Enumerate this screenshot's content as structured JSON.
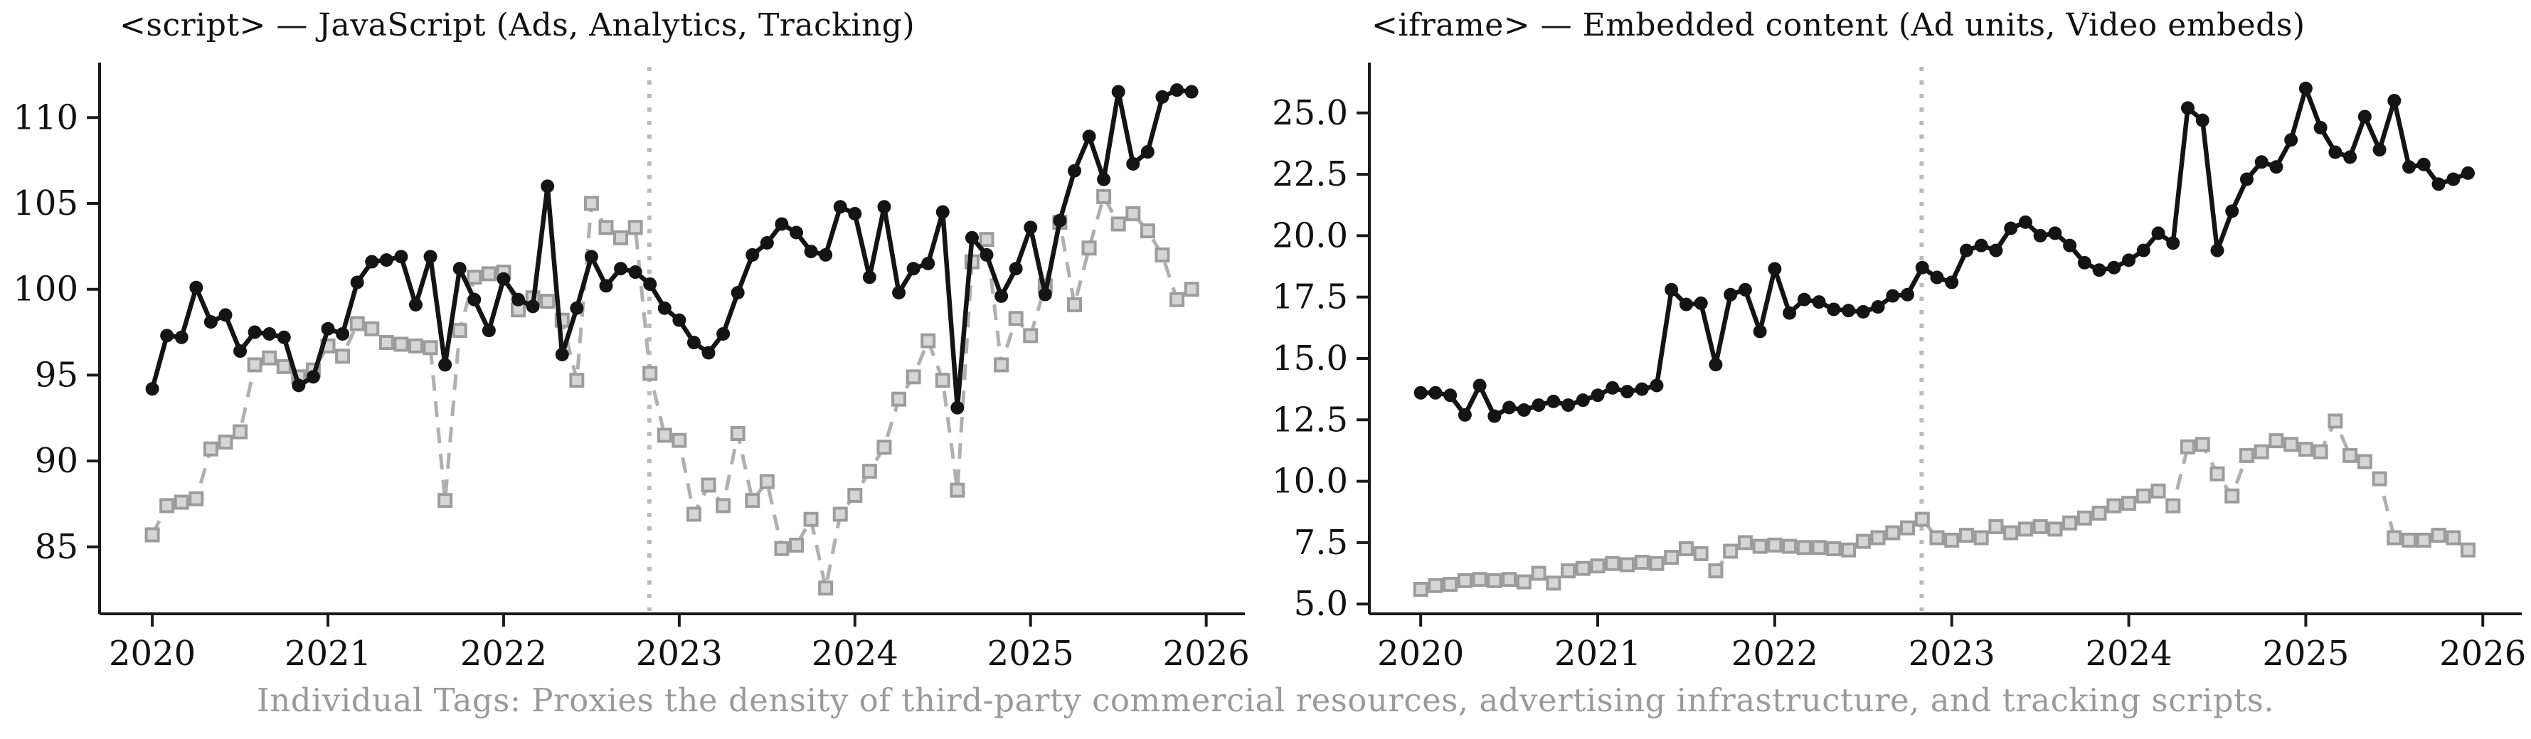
{
  "caption": "Individual Tags: Proxies the density of third-party commercial resources, advertising infrastructure, and tracking scripts.",
  "charts": [
    {
      "title": "<script> — JavaScript (Ads, Analytics, Tracking)"
    },
    {
      "title": "<iframe> — Embedded content (Ad units, Video embeds)"
    }
  ],
  "colors": {
    "solid_series": "#141414",
    "dashed_series": "#b0b0b0",
    "marker_face": "#d6d6d6",
    "marker_edge": "#9c9c9c",
    "vline": "#bbbbbb",
    "axis": "#1a1a1a",
    "tick_label": "#111111",
    "caption_text": "#9a9a9a"
  },
  "chart_data": [
    {
      "type": "line",
      "title": "<script> — JavaScript (Ads, Analytics, Tracking)",
      "x_unit": "month",
      "x_start": 2020.0,
      "x_step_years": 0.0833333,
      "xlim": [
        2019.7,
        2026.22
      ],
      "ylim": [
        81.1,
        113.2
      ],
      "xticks": [
        2020,
        2021,
        2022,
        2023,
        2024,
        2025,
        2026
      ],
      "xtick_labels": [
        "2020",
        "2021",
        "2022",
        "2023",
        "2024",
        "2025",
        "2026"
      ],
      "yticks": [
        85,
        90,
        95,
        100,
        105,
        110
      ],
      "ytick_labels": [
        "85",
        "90",
        "95",
        "100",
        "105",
        "110"
      ],
      "grid": false,
      "legend": "none",
      "annotations": [
        {
          "type": "vline",
          "x": 2022.83,
          "style": "dotted"
        }
      ],
      "series": [
        {
          "name": "solid-black",
          "marker": "circle",
          "values": [
            94.2,
            97.3,
            97.2,
            100.1,
            98.1,
            98.5,
            96.4,
            97.5,
            97.4,
            97.2,
            94.4,
            94.9,
            97.7,
            97.4,
            100.4,
            101.6,
            101.7,
            101.9,
            99.1,
            101.9,
            95.6,
            101.2,
            99.4,
            97.6,
            100.6,
            99.4,
            99.0,
            106.0,
            96.2,
            98.9,
            101.9,
            100.2,
            101.2,
            101.0,
            100.3,
            98.9,
            98.2,
            96.9,
            96.3,
            97.4,
            99.8,
            102.0,
            102.7,
            103.8,
            103.3,
            102.2,
            102.0,
            104.8,
            104.4,
            100.7,
            104.8,
            99.8,
            101.2,
            101.5,
            104.5,
            93.1,
            103.0,
            102.0,
            99.6,
            101.2,
            103.6,
            99.7,
            104.0,
            106.9,
            108.9,
            106.4,
            111.5,
            107.3,
            108.0,
            111.2,
            111.6,
            111.5
          ]
        },
        {
          "name": "dashed-gray",
          "marker": "square",
          "values": [
            85.7,
            87.4,
            87.6,
            87.8,
            90.7,
            91.1,
            91.7,
            95.6,
            96.0,
            95.5,
            94.9,
            95.3,
            96.7,
            96.1,
            98.0,
            97.7,
            96.9,
            96.8,
            96.7,
            96.6,
            87.7,
            97.6,
            100.7,
            100.9,
            101.0,
            98.8,
            99.5,
            99.3,
            98.2,
            94.7,
            105.0,
            103.6,
            103.0,
            103.6,
            95.1,
            91.5,
            91.2,
            86.9,
            88.6,
            87.4,
            91.6,
            87.7,
            88.8,
            84.9,
            85.1,
            86.6,
            82.6,
            86.9,
            88.0,
            89.4,
            90.8,
            93.6,
            94.9,
            97.0,
            94.7,
            88.3,
            101.6,
            102.9,
            95.6,
            98.3,
            97.3,
            100.2,
            103.9,
            99.1,
            102.4,
            105.4,
            103.8,
            104.4,
            103.4,
            102.0,
            99.4,
            100.0
          ]
        }
      ]
    },
    {
      "type": "line",
      "title": "<iframe> — Embedded content (Ad units, Video embeds)",
      "x_unit": "month",
      "x_start": 2020.0,
      "x_step_years": 0.0833333,
      "xlim": [
        2019.71,
        2026.22
      ],
      "ylim": [
        4.6,
        27.05
      ],
      "xticks": [
        2020,
        2021,
        2022,
        2023,
        2024,
        2025,
        2026
      ],
      "xtick_labels": [
        "2020",
        "2021",
        "2022",
        "2023",
        "2024",
        "2025",
        "2026"
      ],
      "yticks": [
        5.0,
        7.5,
        10.0,
        12.5,
        15.0,
        17.5,
        20.0,
        22.5,
        25.0
      ],
      "ytick_labels": [
        "5.0",
        "7.5",
        "10.0",
        "12.5",
        "15.0",
        "17.5",
        "20.0",
        "22.5",
        "25.0"
      ],
      "grid": false,
      "legend": "none",
      "annotations": [
        {
          "type": "vline",
          "x": 2022.83,
          "style": "dotted"
        }
      ],
      "series": [
        {
          "name": "solid-black",
          "marker": "circle",
          "values": [
            13.6,
            13.6,
            13.5,
            12.7,
            13.9,
            12.65,
            13.0,
            12.9,
            13.1,
            13.25,
            13.1,
            13.3,
            13.5,
            13.8,
            13.65,
            13.75,
            13.9,
            17.8,
            17.2,
            17.25,
            14.75,
            17.6,
            17.8,
            16.1,
            18.65,
            16.85,
            17.4,
            17.3,
            17.0,
            16.95,
            16.9,
            17.1,
            17.55,
            17.6,
            18.7,
            18.3,
            18.1,
            19.4,
            19.6,
            19.4,
            20.3,
            20.55,
            20.0,
            20.1,
            19.6,
            18.9,
            18.6,
            18.7,
            19.0,
            19.4,
            20.1,
            19.7,
            25.2,
            24.7,
            19.4,
            21.0,
            22.3,
            23.0,
            22.8,
            23.9,
            26.0,
            24.4,
            23.4,
            23.2,
            24.85,
            23.5,
            25.5,
            22.8,
            22.9,
            22.1,
            22.3,
            22.55
          ]
        },
        {
          "name": "dashed-gray",
          "marker": "square",
          "values": [
            5.6,
            5.75,
            5.8,
            5.95,
            6.0,
            5.95,
            6.0,
            5.9,
            6.25,
            5.85,
            6.35,
            6.45,
            6.55,
            6.65,
            6.6,
            6.7,
            6.65,
            6.9,
            7.25,
            7.05,
            6.35,
            7.15,
            7.5,
            7.35,
            7.4,
            7.35,
            7.3,
            7.3,
            7.25,
            7.2,
            7.55,
            7.7,
            7.9,
            8.1,
            8.45,
            7.7,
            7.6,
            7.8,
            7.7,
            8.15,
            7.9,
            8.05,
            8.15,
            8.05,
            8.3,
            8.5,
            8.7,
            9.0,
            9.1,
            9.4,
            9.6,
            9.0,
            11.4,
            11.5,
            10.3,
            9.4,
            11.05,
            11.2,
            11.65,
            11.5,
            11.3,
            11.2,
            12.45,
            11.05,
            10.8,
            10.1,
            7.7,
            7.6,
            7.6,
            7.8,
            7.7,
            7.2
          ]
        }
      ]
    }
  ]
}
